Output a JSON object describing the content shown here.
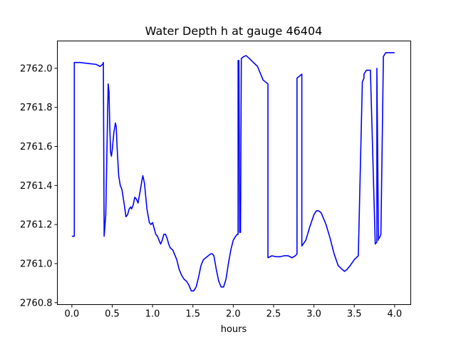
{
  "chart_data": {
    "type": "line",
    "title": "Water Depth h at gauge 46404",
    "xlabel": "hours",
    "ylabel": "",
    "xlim": [
      -0.18,
      4.2
    ],
    "ylim": [
      2760.79,
      2762.14
    ],
    "xticks": [
      0.0,
      0.5,
      1.0,
      1.5,
      2.0,
      2.5,
      3.0,
      3.5,
      4.0
    ],
    "xtick_labels": [
      "0.0",
      "0.5",
      "1.0",
      "1.5",
      "2.0",
      "2.5",
      "3.0",
      "3.5",
      "4.0"
    ],
    "yticks": [
      2760.8,
      2761.0,
      2761.2,
      2761.4,
      2761.6,
      2761.8,
      2762.0
    ],
    "ytick_labels": [
      "2760.8",
      "2761.0",
      "2761.2",
      "2761.4",
      "2761.6",
      "2761.8",
      "2762.0"
    ],
    "grid": false,
    "line_color": "#0000ff",
    "series": [
      {
        "x": [
          0.0,
          0.03,
          0.03,
          0.1,
          0.2,
          0.3,
          0.35,
          0.38,
          0.39,
          0.4,
          0.42,
          0.44,
          0.45,
          0.46,
          0.47,
          0.48,
          0.49,
          0.5,
          0.52,
          0.54,
          0.55,
          0.56,
          0.58,
          0.6,
          0.62,
          0.65,
          0.67,
          0.69,
          0.71,
          0.73,
          0.74,
          0.76,
          0.78,
          0.8,
          0.82,
          0.85,
          0.87,
          0.88,
          0.9,
          0.93,
          0.96,
          0.98,
          1.0,
          1.02,
          1.04,
          1.06,
          1.08,
          1.1,
          1.12,
          1.14,
          1.16,
          1.18,
          1.2,
          1.22,
          1.25,
          1.28,
          1.3,
          1.33,
          1.36,
          1.39,
          1.42,
          1.45,
          1.48,
          1.51,
          1.54,
          1.57,
          1.6,
          1.63,
          1.66,
          1.69,
          1.72,
          1.74,
          1.76,
          1.79,
          1.82,
          1.85,
          1.88,
          1.91,
          1.94,
          1.97,
          2.0,
          2.03,
          2.05,
          2.06,
          2.06,
          2.07,
          2.08,
          2.08,
          2.09,
          2.1,
          2.1,
          2.13,
          2.16,
          2.2,
          2.25,
          2.3,
          2.34,
          2.37,
          2.4,
          2.43,
          2.43,
          2.48,
          2.53,
          2.58,
          2.63,
          2.68,
          2.73,
          2.77,
          2.79,
          2.79,
          2.85,
          2.85,
          2.9,
          2.95,
          3.0,
          3.03,
          3.06,
          3.09,
          3.12,
          3.15,
          3.2,
          3.25,
          3.3,
          3.35,
          3.38,
          3.41,
          3.45,
          3.5,
          3.55,
          3.6,
          3.62,
          3.62,
          3.65,
          3.7,
          3.76,
          3.78,
          3.78,
          3.8,
          3.8,
          3.81,
          3.83,
          3.86,
          3.86,
          3.89,
          3.92,
          3.95,
          3.98,
          4.0
        ],
        "y": [
          2761.14,
          2761.14,
          2762.03,
          2762.03,
          2762.025,
          2762.02,
          2762.01,
          2762.02,
          2762.03,
          2761.14,
          2761.25,
          2761.7,
          2761.92,
          2761.88,
          2761.7,
          2761.57,
          2761.55,
          2761.58,
          2761.67,
          2761.72,
          2761.7,
          2761.6,
          2761.45,
          2761.4,
          2761.38,
          2761.3,
          2761.24,
          2761.25,
          2761.28,
          2761.29,
          2761.28,
          2761.3,
          2761.34,
          2761.33,
          2761.31,
          2761.38,
          2761.43,
          2761.45,
          2761.41,
          2761.28,
          2761.21,
          2761.2,
          2761.21,
          2761.18,
          2761.15,
          2761.14,
          2761.12,
          2761.1,
          2761.12,
          2761.15,
          2761.15,
          2761.13,
          2761.1,
          2761.08,
          2761.07,
          2761.04,
          2761.02,
          2760.97,
          2760.94,
          2760.92,
          2760.91,
          2760.89,
          2760.86,
          2760.86,
          2760.88,
          2760.93,
          2760.99,
          2761.02,
          2761.03,
          2761.04,
          2761.05,
          2761.05,
          2761.04,
          2760.97,
          2760.91,
          2760.88,
          2760.88,
          2760.92,
          2761.0,
          2761.07,
          2761.12,
          2761.14,
          2761.15,
          2761.15,
          2762.04,
          2762.04,
          2761.16,
          2761.16,
          2761.16,
          2762.05,
          2762.05,
          2762.06,
          2762.065,
          2762.05,
          2762.03,
          2762.01,
          2761.97,
          2761.94,
          2761.93,
          2761.92,
          2761.03,
          2761.04,
          2761.035,
          2761.035,
          2761.04,
          2761.04,
          2761.03,
          2761.04,
          2761.05,
          2761.95,
          2761.97,
          2761.09,
          2761.12,
          2761.19,
          2761.25,
          2761.27,
          2761.27,
          2761.26,
          2761.23,
          2761.2,
          2761.13,
          2761.05,
          2760.99,
          2760.97,
          2760.96,
          2760.97,
          2760.99,
          2761.02,
          2761.04,
          2761.93,
          2761.95,
          2761.97,
          2761.99,
          2761.99,
          2761.1,
          2761.11,
          2762.0,
          2761.12,
          2761.13,
          2761.13,
          2761.15,
          2762.03,
          2762.06,
          2762.08,
          2762.08,
          2762.08,
          2762.08,
          2762.08
        ]
      }
    ]
  }
}
